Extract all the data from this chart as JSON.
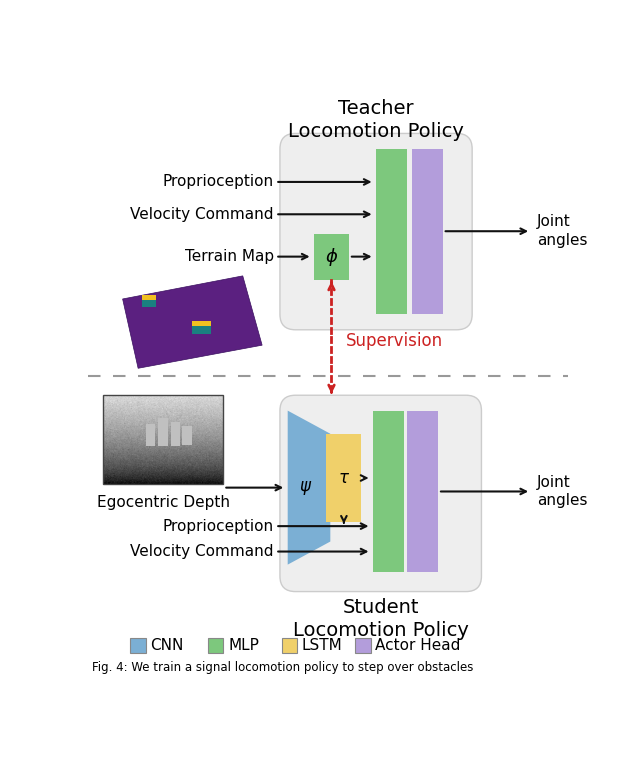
{
  "teacher_title": "Teacher\nLocomotion Policy",
  "student_title": "Student\nLocomotion Policy",
  "supervision_label": "Supervision",
  "joint_angles_label": "Joint\nangles",
  "cnn_color": "#7BAFD4",
  "mlp_color": "#7DC87D",
  "lstm_color": "#F0D06A",
  "actor_color": "#B39DDB",
  "bg_box_color": "#ECECEC",
  "bg_box_edge": "#CCCCCC",
  "dashed_line_color": "#999999",
  "supervision_color": "#CC2222",
  "arrow_color": "#111111",
  "terrain_color": "#5B2080",
  "white_bg": "#FFFFFF",
  "legend_items": [
    {
      "label": "CNN",
      "color": "#7BAFD4"
    },
    {
      "label": "MLP",
      "color": "#7DC87D"
    },
    {
      "label": "LSTM",
      "color": "#F0D06A"
    },
    {
      "label": "Actor Head",
      "color": "#B39DDB"
    }
  ],
  "fig_caption": "Fig. 4: We train a signal locomotion policy to step over obstacles",
  "teacher_inputs": [
    "Proprioception",
    "Velocity Command",
    "Terrain Map"
  ],
  "student_depth_label": "Egocentric Depth",
  "student_prop_label": "Proprioception",
  "student_vel_label": "Velocity Command"
}
